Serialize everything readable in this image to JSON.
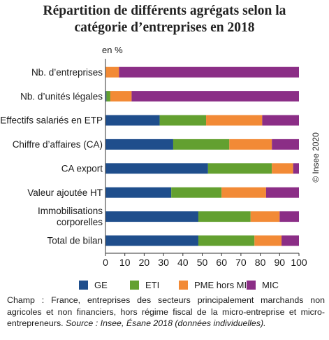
{
  "title_lines": [
    "Répartition de différents agrégats selon la",
    "catégorie d’entreprises en 2018"
  ],
  "unit_label": "en %",
  "copyright": "© Insee 2020",
  "note": {
    "text": "Champ : France, entreprises des secteurs principalement marchands non agricoles et non financiers, hors régime fiscal de la micro-entreprise et micro-entrepreneurs.",
    "source": "Source : Insee, Ésane 2018 (données individuelles)."
  },
  "colors": {
    "GE": "#1f4e8c",
    "ETI": "#63a030",
    "PME hors MIC": "#f28a36",
    "MIC": "#8b2e86"
  },
  "chart_data": {
    "type": "bar",
    "orientation": "horizontal",
    "stacked": true,
    "categories": [
      "Nb. d’entreprises",
      "Nb. d’unités légales",
      "Effectifs salariés en ETP",
      "Chiffre d’affaires (CA)",
      "CA export",
      "Valeur ajoutée HT",
      "Immobilisations corporelles",
      "Total de bilan"
    ],
    "series": [
      {
        "name": "GE",
        "values": [
          0,
          0.5,
          28,
          35,
          53,
          34,
          48,
          48
        ]
      },
      {
        "name": "ETI",
        "values": [
          0.2,
          2,
          24,
          29,
          33,
          26,
          27,
          29
        ]
      },
      {
        "name": "PME hors MIC",
        "values": [
          6.8,
          11,
          29,
          22,
          11,
          23,
          15,
          14
        ]
      },
      {
        "name": "MIC",
        "values": [
          93,
          86.5,
          19,
          14,
          3,
          17,
          10,
          9
        ]
      }
    ],
    "xlim": [
      0,
      100
    ],
    "xticks": [
      0,
      10,
      20,
      30,
      40,
      50,
      60,
      70,
      80,
      90,
      100
    ],
    "grid": false,
    "legend": "bottom"
  }
}
